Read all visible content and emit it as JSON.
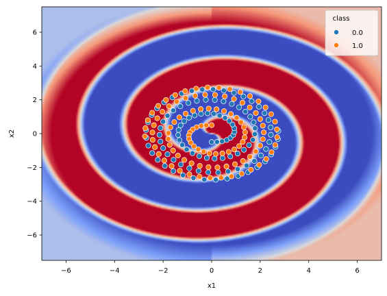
{
  "chart_data": {
    "type": "scatter",
    "xlabel": "x1",
    "ylabel": "x2",
    "xlim": [
      -7.0,
      7.0
    ],
    "ylim": [
      -7.5,
      7.5
    ],
    "xticks": [
      -6,
      -4,
      -2,
      0,
      2,
      4,
      6
    ],
    "yticks": [
      -6,
      -4,
      -2,
      0,
      2,
      4,
      6
    ],
    "xtick_labels": [
      "−6",
      "−4",
      "−2",
      "0",
      "2",
      "4",
      "6"
    ],
    "ytick_labels": [
      "−6",
      "−4",
      "−2",
      "0",
      "2",
      "4",
      "6"
    ],
    "background": "decision-boundary probability heatmap (coolwarm: blue = class 0.0, red = class 1.0)",
    "legend": {
      "title": "class",
      "placement": "top-right",
      "entries": [
        "0.0",
        "1.0"
      ]
    },
    "colors": {
      "0.0": "#1f77b4",
      "1.0": "#ff7f0e",
      "region_0_strong": "#3b4cc0",
      "region_0_light": "#aac7fd",
      "region_1_strong": "#b40426",
      "region_1_light": "#f4987a",
      "neutral": "#dddcdc"
    },
    "series": [
      {
        "name": "0.0",
        "color": "#1f77b4",
        "points": [
          [
            0.0,
            -0.5
          ],
          [
            0.22,
            -0.49
          ],
          [
            0.43,
            -0.46
          ],
          [
            0.62,
            -0.38
          ],
          [
            0.78,
            -0.25
          ],
          [
            0.89,
            -0.08
          ],
          [
            0.94,
            0.11
          ],
          [
            0.93,
            0.32
          ],
          [
            0.86,
            0.54
          ],
          [
            0.73,
            0.75
          ],
          [
            0.55,
            0.93
          ],
          [
            0.33,
            1.07
          ],
          [
            0.09,
            1.17
          ],
          [
            -0.17,
            1.2
          ],
          [
            -0.44,
            1.17
          ],
          [
            -0.7,
            1.08
          ],
          [
            -0.93,
            0.94
          ],
          [
            -1.13,
            0.74
          ],
          [
            -1.28,
            0.49
          ],
          [
            -1.36,
            0.22
          ],
          [
            -1.38,
            -0.08
          ],
          [
            -1.33,
            -0.38
          ],
          [
            -1.21,
            -0.67
          ],
          [
            -1.03,
            -0.94
          ],
          [
            -0.79,
            -1.16
          ],
          [
            -0.51,
            -1.33
          ],
          [
            -0.2,
            -1.44
          ],
          [
            0.12,
            -1.48
          ],
          [
            0.45,
            -1.45
          ],
          [
            0.77,
            -1.35
          ],
          [
            1.07,
            -1.18
          ],
          [
            1.33,
            -0.96
          ],
          [
            1.54,
            -0.68
          ],
          [
            1.7,
            -0.37
          ],
          [
            1.78,
            -0.03
          ],
          [
            1.79,
            0.32
          ],
          [
            1.73,
            0.67
          ],
          [
            1.59,
            1.0
          ],
          [
            1.39,
            1.3
          ],
          [
            1.13,
            1.56
          ],
          [
            0.83,
            1.76
          ],
          [
            0.49,
            1.91
          ],
          [
            0.13,
            1.99
          ],
          [
            -0.24,
            2.0
          ],
          [
            -0.61,
            1.94
          ],
          [
            -0.96,
            1.81
          ],
          [
            -1.29,
            1.62
          ],
          [
            -1.58,
            1.37
          ],
          [
            -1.82,
            1.06
          ],
          [
            -2.0,
            0.71
          ],
          [
            -2.11,
            0.33
          ],
          [
            -2.15,
            -0.07
          ],
          [
            -2.11,
            -0.47
          ],
          [
            -2.0,
            -0.86
          ],
          [
            -1.82,
            -1.22
          ],
          [
            -1.57,
            -1.55
          ],
          [
            -1.27,
            -1.83
          ],
          [
            -0.92,
            -2.05
          ],
          [
            -0.54,
            -2.21
          ],
          [
            -0.14,
            -2.29
          ],
          [
            0.27,
            -2.3
          ],
          [
            0.68,
            -2.24
          ],
          [
            1.07,
            -2.1
          ],
          [
            1.44,
            -1.89
          ],
          [
            1.76,
            -1.62
          ],
          [
            2.03,
            -1.29
          ],
          [
            2.24,
            -0.91
          ],
          [
            2.38,
            -0.5
          ],
          [
            2.44,
            -0.07
          ],
          [
            2.43,
            0.37
          ],
          [
            2.34,
            0.8
          ],
          [
            2.18,
            1.21
          ],
          [
            1.95,
            1.59
          ],
          [
            1.65,
            1.92
          ],
          [
            1.31,
            2.2
          ],
          [
            0.92,
            2.41
          ],
          [
            0.5,
            2.55
          ],
          [
            0.06,
            2.62
          ],
          [
            -0.39,
            2.61
          ],
          [
            -0.82,
            2.53
          ],
          [
            -1.24,
            2.37
          ],
          [
            -1.62,
            2.14
          ],
          [
            -1.96,
            1.85
          ],
          [
            -2.25,
            1.5
          ],
          [
            -2.47,
            1.1
          ],
          [
            -2.62,
            0.67
          ],
          [
            -2.7,
            0.21
          ],
          [
            -2.69,
            -0.25
          ],
          [
            -2.61,
            -0.71
          ],
          [
            -2.45,
            -1.15
          ],
          [
            -2.22,
            -1.55
          ],
          [
            -1.93,
            -1.91
          ],
          [
            -1.58,
            -2.22
          ],
          [
            -1.18,
            -2.46
          ],
          [
            -0.75,
            -2.63
          ],
          [
            -0.3,
            -2.72
          ],
          [
            0.17,
            -2.73
          ],
          [
            0.64,
            -2.66
          ],
          [
            1.09,
            -2.51
          ],
          [
            1.5,
            -2.28
          ],
          [
            1.88,
            -1.99
          ],
          [
            2.2,
            -1.64
          ],
          [
            2.45,
            -1.23
          ],
          [
            2.63,
            -0.79
          ],
          [
            2.73,
            -0.32
          ],
          [
            2.75,
            0.16
          ]
        ]
      },
      {
        "name": "1.0",
        "color": "#ff7f0e",
        "points": [
          [
            0.0,
            0.5
          ],
          [
            -0.22,
            0.49
          ],
          [
            -0.43,
            0.46
          ],
          [
            -0.62,
            0.38
          ],
          [
            -0.78,
            0.25
          ],
          [
            -0.89,
            0.08
          ],
          [
            -0.94,
            -0.11
          ],
          [
            -0.93,
            -0.32
          ],
          [
            -0.86,
            -0.54
          ],
          [
            -0.73,
            -0.75
          ],
          [
            -0.55,
            -0.93
          ],
          [
            -0.33,
            -1.07
          ],
          [
            -0.09,
            -1.17
          ],
          [
            0.17,
            -1.2
          ],
          [
            0.44,
            -1.17
          ],
          [
            0.7,
            -1.08
          ],
          [
            0.93,
            -0.94
          ],
          [
            1.13,
            -0.74
          ],
          [
            1.28,
            -0.49
          ],
          [
            1.36,
            -0.22
          ],
          [
            1.38,
            0.08
          ],
          [
            1.33,
            0.38
          ],
          [
            1.21,
            0.67
          ],
          [
            1.03,
            0.94
          ],
          [
            0.79,
            1.16
          ],
          [
            0.51,
            1.33
          ],
          [
            0.2,
            1.44
          ],
          [
            -0.12,
            1.48
          ],
          [
            -0.45,
            1.45
          ],
          [
            -0.77,
            1.35
          ],
          [
            -1.07,
            1.18
          ],
          [
            -1.33,
            0.96
          ],
          [
            -1.54,
            0.68
          ],
          [
            -1.7,
            0.37
          ],
          [
            -1.78,
            0.03
          ],
          [
            -1.79,
            -0.32
          ],
          [
            -1.73,
            -0.67
          ],
          [
            -1.59,
            -1.0
          ],
          [
            -1.39,
            -1.3
          ],
          [
            -1.13,
            -1.56
          ],
          [
            -0.83,
            -1.76
          ],
          [
            -0.49,
            -1.91
          ],
          [
            -0.13,
            -1.99
          ],
          [
            0.24,
            -2.0
          ],
          [
            0.61,
            -1.94
          ],
          [
            0.96,
            -1.81
          ],
          [
            1.29,
            -1.62
          ],
          [
            1.58,
            -1.37
          ],
          [
            1.82,
            -1.06
          ],
          [
            2.0,
            -0.71
          ],
          [
            2.11,
            -0.33
          ],
          [
            2.15,
            0.07
          ],
          [
            2.11,
            0.47
          ],
          [
            2.0,
            0.86
          ],
          [
            1.82,
            1.22
          ],
          [
            1.57,
            1.55
          ],
          [
            1.27,
            1.83
          ],
          [
            0.92,
            2.05
          ],
          [
            0.54,
            2.21
          ],
          [
            0.14,
            2.29
          ],
          [
            -0.27,
            2.3
          ],
          [
            -0.68,
            2.24
          ],
          [
            -1.07,
            2.1
          ],
          [
            -1.44,
            1.89
          ],
          [
            -1.76,
            1.62
          ],
          [
            -2.03,
            1.29
          ],
          [
            -2.24,
            0.91
          ],
          [
            -2.38,
            0.5
          ],
          [
            -2.44,
            0.07
          ],
          [
            -2.43,
            -0.37
          ],
          [
            -2.34,
            -0.8
          ],
          [
            -2.18,
            -1.21
          ],
          [
            -1.95,
            -1.59
          ],
          [
            -1.65,
            -1.92
          ],
          [
            -1.31,
            -2.2
          ],
          [
            -0.92,
            -2.41
          ],
          [
            -0.5,
            -2.55
          ],
          [
            -0.06,
            -2.62
          ],
          [
            0.39,
            -2.61
          ],
          [
            0.82,
            -2.53
          ],
          [
            1.24,
            -2.37
          ],
          [
            1.62,
            -2.14
          ],
          [
            1.96,
            -1.85
          ],
          [
            2.25,
            -1.5
          ],
          [
            2.47,
            -1.1
          ],
          [
            2.62,
            -0.67
          ],
          [
            2.7,
            -0.21
          ],
          [
            2.69,
            0.25
          ],
          [
            2.61,
            0.71
          ],
          [
            2.45,
            1.15
          ],
          [
            2.22,
            1.55
          ],
          [
            1.93,
            1.91
          ],
          [
            1.58,
            2.22
          ],
          [
            1.18,
            2.46
          ],
          [
            0.75,
            2.63
          ],
          [
            0.3,
            2.72
          ],
          [
            -0.17,
            2.73
          ],
          [
            -0.64,
            2.66
          ],
          [
            -1.09,
            2.51
          ],
          [
            -1.5,
            2.28
          ],
          [
            -1.88,
            1.99
          ],
          [
            -2.2,
            1.64
          ],
          [
            -2.45,
            1.23
          ],
          [
            -2.63,
            0.79
          ],
          [
            -2.73,
            0.32
          ],
          [
            -2.75,
            -0.16
          ]
        ]
      }
    ]
  }
}
